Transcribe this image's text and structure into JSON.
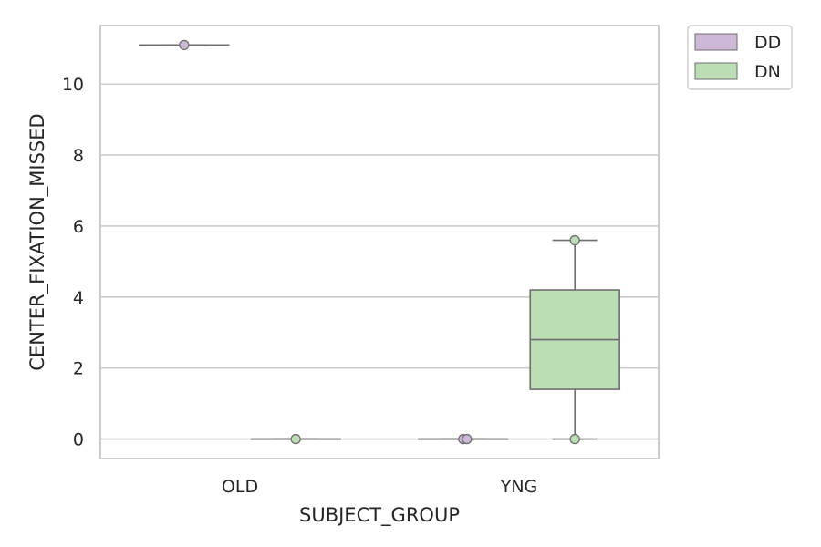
{
  "chart_data": {
    "type": "box",
    "xlabel": "SUBJECT_GROUP",
    "ylabel": "CENTER_FIXATION_MISSED",
    "categories": [
      "OLD",
      "YNG"
    ],
    "ylim": [
      -0.55,
      11.65
    ],
    "yticks": [
      0,
      2,
      4,
      6,
      8,
      10
    ],
    "grid": "horizontal",
    "legend_position": "outside-top-right",
    "series": [
      {
        "name": "DD",
        "color": "#cdb8d8",
        "boxes": [
          {
            "category": "OLD",
            "min": 11.1,
            "q1": 11.1,
            "median": 11.1,
            "q3": 11.1,
            "max": 11.1,
            "outliers": [
              11.1
            ]
          },
          {
            "category": "YNG",
            "min": 0,
            "q1": 0,
            "median": 0,
            "q3": 0,
            "max": 0,
            "outliers": [
              0,
              0
            ]
          }
        ]
      },
      {
        "name": "DN",
        "color": "#bcdeb4",
        "boxes": [
          {
            "category": "OLD",
            "min": 0,
            "q1": 0,
            "median": 0,
            "q3": 0,
            "max": 0,
            "outliers": [
              0
            ]
          },
          {
            "category": "YNG",
            "min": 0,
            "q1": 1.4,
            "median": 2.8,
            "q3": 4.2,
            "max": 5.6,
            "outliers": [
              5.6,
              0
            ]
          }
        ]
      }
    ]
  },
  "colors": {
    "axis_frame": "#cccccc",
    "grid": "#cccccc",
    "box_edge": "#6e6e6e",
    "text": "#262626"
  }
}
